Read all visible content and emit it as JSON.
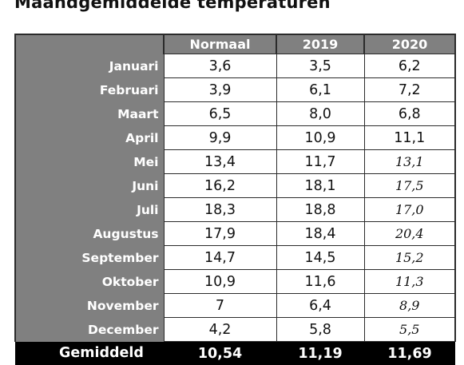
{
  "title": "Maandgemiddelde temperaturen",
  "columns": [
    "Normaal",
    "2019",
    "2020"
  ],
  "rows": [
    {
      "month": "Januari",
      "normaal": "3,6",
      "y2019": "3,5",
      "y2020": "6,2"
    },
    {
      "month": "Februari",
      "normaal": "3,9",
      "y2019": "6,1",
      "y2020": "7,2"
    },
    {
      "month": "Maart",
      "normaal": "6,5",
      "y2019": "8,0",
      "y2020": "6,8"
    },
    {
      "month": "April",
      "normaal": "9,9",
      "y2019": "10,9",
      "y2020": "11,1"
    },
    {
      "month": "Mei",
      "normaal": "13,4",
      "y2019": "11,7",
      "y2020": "13,1"
    },
    {
      "month": "Juni",
      "normaal": "16,2",
      "y2019": "18,1",
      "y2020": "17,5"
    },
    {
      "month": "Juli",
      "normaal": "18,3",
      "y2019": "18,8",
      "y2020": "17,0"
    },
    {
      "month": "Augustus",
      "normaal": "17,9",
      "y2019": "18,4",
      "y2020": "20,4"
    },
    {
      "month": "September",
      "normaal": "14,7",
      "y2019": "14,5",
      "y2020": "15,2"
    },
    {
      "month": "Oktober",
      "normaal": "10,9",
      "y2019": "11,6",
      "y2020": "11,3"
    },
    {
      "month": "November",
      "normaal": "7",
      "y2019": "6,4",
      "y2020": "8,9"
    },
    {
      "month": "December",
      "normaal": "4,2",
      "y2019": "5,8",
      "y2020": "5,5"
    }
  ],
  "average": {
    "label": "Gemiddeld",
    "normaal": "10,54",
    "y2019": "11,19",
    "y2020": "11,69"
  },
  "colors": {
    "header_bg": "#808080",
    "average_bg": "#000000",
    "border": "#2b2b2b"
  }
}
